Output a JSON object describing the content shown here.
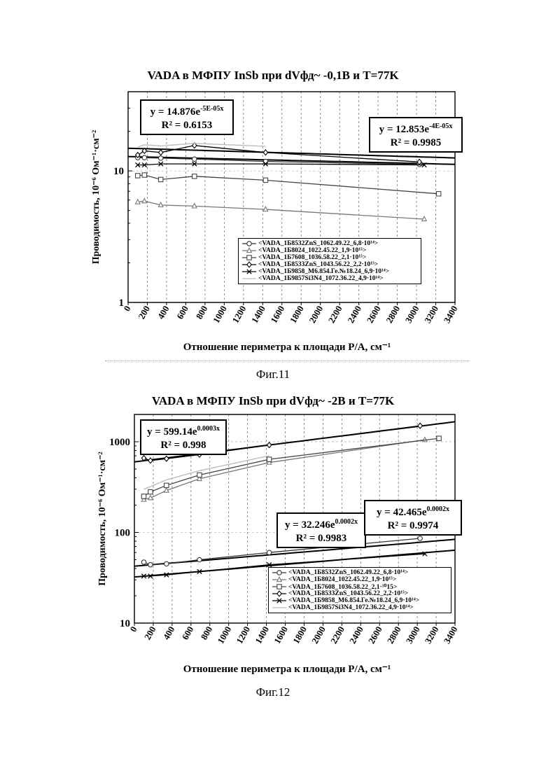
{
  "figures": [
    {
      "title": "VADA в МФПУ InSb при dVфд~ -0,1В и T=77K",
      "caption": "Фиг.11",
      "xlabel": "Отношение периметра к площади P/A, см⁻¹",
      "ylabel": "Проводимость, 10⁻⁶ Ом⁻¹·см⁻²",
      "equations": [
        {
          "eq_text": "y = 14.876e",
          "eq_exp": "-5E-05x",
          "r2": "R² = 0.6153"
        },
        {
          "eq_text": "y = 12.853e",
          "eq_exp": "-4E-05x",
          "r2": "R² = 0.9985"
        }
      ],
      "legend": [
        "<VADA_1Б8532ZnS_1062.49.22_6,8·10¹⁴>",
        "<VADA_1Б8024_1022.45.22_1,9·10¹⁵>",
        "<VADA_1Б7608_1036.58.22_2,1·10¹⁵>",
        "<VADA_1Б8533ZnS_1043.56.22_2,2·10¹⁵>",
        "<VADA_1Б9858_M6.854.Ге.№18.24_6,9·10¹⁴>",
        "<VADA_1Б9857Si3N4_1072.36.22_4,9·10¹⁴>"
      ]
    },
    {
      "title": "VADA в МФПУ InSb при dVфд~ -2В и T=77K",
      "caption": "Фиг.12",
      "xlabel": "Отношение периметра к площади P/A, см⁻¹",
      "ylabel": "Проводимость, 10⁻⁶ Ом⁻¹·см⁻²",
      "equations": [
        {
          "eq_text": "y = 599.14e",
          "eq_exp": "0.0003x",
          "r2": "R² = 0.998"
        },
        {
          "eq_text": "y = 32.246e",
          "eq_exp": "0.0002x",
          "r2": "R² = 0.9983"
        },
        {
          "eq_text": "y = 42.465e",
          "eq_exp": "0.0002x",
          "r2": "R² = 0.9974"
        }
      ],
      "legend": [
        "<VADA_1Б8532ZnS_1062.49.22_6,8·10¹⁴>",
        "<VADA_1Б8024_1022.45.22_1,9·10¹⁵>",
        "<VADA_1Б7608_1036.58.22_2,1·¹⁰15>",
        "<VADA_1Б8533ZnS_1043.56.22_2,2·10¹⁵>",
        "<VADA_1Б9858_M6.854.Ге.№18.24_6,9·10¹⁴>",
        "<VADA_1Б9857Si3N4_1072.36.22_4,9·10¹⁴>"
      ]
    }
  ],
  "chart_data": [
    {
      "type": "scatter",
      "title": "VADA в МФПУ InSb при dVфд~ -0,1В и T=77K",
      "xlabel": "Отношение периметра к площади P/A, см⁻¹",
      "ylabel": "Проводимость, 10⁻⁶ Ом⁻¹·см⁻²",
      "xlim": [
        0,
        3400
      ],
      "ylim": [
        1,
        40
      ],
      "y_scale": "log",
      "x_ticks": [
        0,
        200,
        400,
        600,
        800,
        1000,
        1200,
        1400,
        1600,
        1800,
        2000,
        2200,
        2400,
        2600,
        2800,
        3000,
        3200,
        3400
      ],
      "y_ticks": [
        1,
        10
      ],
      "y_tick_labels": [
        "1",
        "10"
      ],
      "grid": "vertical-dashed",
      "legend_position": "bottom-right",
      "series": [
        {
          "name": "<VADA_1Б8532ZnS_1062.49.22_6,8·10¹⁴>",
          "marker": "circle",
          "color": "#333333",
          "x": [
            100,
            170,
            340,
            690,
            1430,
            3030
          ],
          "y": [
            12.6,
            12.6,
            12.5,
            12.3,
            11.8,
            11.2
          ]
        },
        {
          "name": "<VADA_1Б8024_1022.45.22_1,9·10¹⁵>",
          "marker": "triangle",
          "color": "#777777",
          "x": [
            100,
            170,
            340,
            690,
            1430,
            3080
          ],
          "y": [
            5.8,
            5.9,
            5.5,
            5.4,
            5.1,
            4.3
          ]
        },
        {
          "name": "<VADA_1Б7608_1036.58.22_2,1·10¹⁵>",
          "marker": "square",
          "color": "#444444",
          "x": [
            100,
            170,
            340,
            690,
            1430,
            3230
          ],
          "y": [
            9.2,
            9.3,
            8.6,
            9.1,
            8.5,
            6.7
          ]
        },
        {
          "name": "<VADA_1Б8533ZnS_1043.56.22_2,2·10¹⁵>",
          "marker": "diamond",
          "color": "#000000",
          "x": [
            100,
            170,
            340,
            690,
            1430,
            3030
          ],
          "y": [
            13.2,
            14.2,
            13.8,
            15.6,
            13.8,
            11.7
          ]
        },
        {
          "name": "<VADA_1Б9858_M6.854.Ге.№18.24_6,9·10¹⁴>",
          "marker": "x",
          "color": "#000000",
          "x": [
            100,
            170,
            340,
            690,
            1430,
            3080
          ],
          "y": [
            11.1,
            11.1,
            11.3,
            11.3,
            11.3,
            11.1
          ]
        },
        {
          "name": "<VADA_1Б9857Si3N4_1072.36.22_4,9·10¹⁴>",
          "marker": "none",
          "color": "#bbbbbb",
          "x": [
            100,
            170,
            340,
            690,
            1430
          ],
          "y": [
            15.2,
            15.8,
            15.5,
            16.2,
            15.4
          ]
        }
      ],
      "trendlines": [
        {
          "a": 14.876,
          "b": -5e-05,
          "x_range": [
            0,
            3400
          ]
        },
        {
          "a": 12.853,
          "b": -4e-05,
          "x_range": [
            0,
            3400
          ]
        }
      ]
    },
    {
      "type": "scatter",
      "title": "VADA в МФПУ InSb при dVфд~ -2В и T=77K",
      "xlabel": "Отношение периметра к площади P/A, см⁻¹",
      "ylabel": "Проводимость, 10⁻⁶ Ом⁻¹·см⁻²",
      "xlim": [
        0,
        3400
      ],
      "ylim": [
        10,
        2000
      ],
      "y_scale": "log",
      "x_ticks": [
        0,
        200,
        400,
        600,
        800,
        1000,
        1200,
        1400,
        1600,
        1800,
        2000,
        2200,
        2400,
        2600,
        2800,
        3000,
        3200,
        3400
      ],
      "y_ticks": [
        10,
        100,
        1000
      ],
      "y_tick_labels": [
        "10",
        "100",
        "1000"
      ],
      "grid": "vertical-dashed",
      "legend_position": "bottom-right",
      "series": [
        {
          "name": "<VADA_1Б8532ZnS_1062.49.22_6,8·10¹⁴>",
          "marker": "circle",
          "color": "#333333",
          "x": [
            100,
            170,
            340,
            690,
            1430,
            3030
          ],
          "y": [
            47,
            44,
            45,
            50,
            60,
            86
          ]
        },
        {
          "name": "<VADA_1Б8024_1022.45.22_1,9·10¹⁵>",
          "marker": "triangle",
          "color": "#777777",
          "x": [
            100,
            170,
            340,
            690,
            1430,
            3080
          ],
          "y": [
            230,
            240,
            290,
            390,
            590,
            1050
          ]
        },
        {
          "name": "<VADA_1Б7608_1036.58.22_2,1·¹⁰15>",
          "marker": "square",
          "color": "#444444",
          "x": [
            100,
            170,
            340,
            690,
            1430,
            3230
          ],
          "y": [
            250,
            280,
            330,
            430,
            640,
            1090
          ]
        },
        {
          "name": "<VADA_1Б8533ZnS_1043.56.22_2,2·10¹⁵>",
          "marker": "diamond",
          "color": "#000000",
          "x": [
            100,
            170,
            340,
            690,
            1430,
            3030
          ],
          "y": [
            660,
            620,
            650,
            720,
            920,
            1500
          ]
        },
        {
          "name": "<VADA_1Б9858_M6.854.Ге.№18.24_6,9·10¹⁴>",
          "marker": "x",
          "color": "#000000",
          "x": [
            100,
            170,
            340,
            690,
            1430,
            3080
          ],
          "y": [
            33,
            33,
            34,
            37,
            44,
            58
          ]
        },
        {
          "name": "<VADA_1Б9857Si3N4_1072.36.22_4,9·10¹⁴>",
          "marker": "none",
          "color": "#bbbbbb",
          "x": [
            100,
            170,
            340,
            690,
            1430
          ],
          "y": [
            300,
            320,
            380,
            480,
            700
          ]
        }
      ],
      "trendlines": [
        {
          "a": 599.14,
          "b": 0.0003,
          "x_range": [
            0,
            3400
          ]
        },
        {
          "a": 32.246,
          "b": 0.0002,
          "x_range": [
            0,
            3400
          ]
        },
        {
          "a": 42.465,
          "b": 0.0002,
          "x_range": [
            0,
            3400
          ]
        }
      ]
    }
  ]
}
